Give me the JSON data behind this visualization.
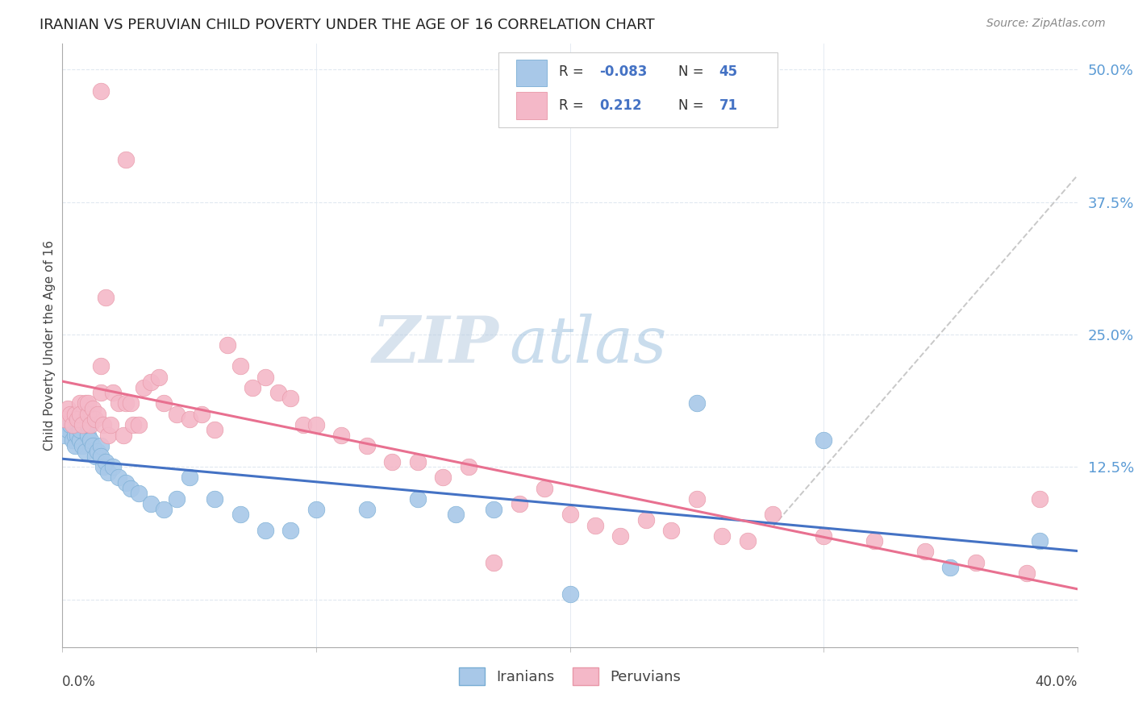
{
  "title": "IRANIAN VS PERUVIAN CHILD POVERTY UNDER THE AGE OF 16 CORRELATION CHART",
  "source": "Source: ZipAtlas.com",
  "ylabel": "Child Poverty Under the Age of 16",
  "xmin": 0.0,
  "xmax": 0.4,
  "ymin": -0.045,
  "ymax": 0.525,
  "blue_color": "#a8c8e8",
  "blue_edge": "#7aaed4",
  "pink_color": "#f4b8c8",
  "pink_edge": "#e898a8",
  "blue_line_color": "#4472c4",
  "pink_line_color": "#e87090",
  "dashed_line_color": "#c8c8c8",
  "watermark_zip_color": "#c0d0e0",
  "watermark_atlas_color": "#b0c8e0",
  "background_color": "#ffffff",
  "grid_color": "#e0e8f0",
  "ytick_color": "#5b9bd5",
  "iranians_x": [
    0.001,
    0.002,
    0.003,
    0.004,
    0.005,
    0.005,
    0.006,
    0.007,
    0.007,
    0.008,
    0.009,
    0.01,
    0.01,
    0.011,
    0.012,
    0.013,
    0.014,
    0.015,
    0.015,
    0.016,
    0.017,
    0.018,
    0.02,
    0.022,
    0.025,
    0.027,
    0.03,
    0.035,
    0.04,
    0.045,
    0.05,
    0.06,
    0.07,
    0.08,
    0.09,
    0.1,
    0.12,
    0.14,
    0.155,
    0.17,
    0.2,
    0.25,
    0.3,
    0.35,
    0.385
  ],
  "iranians_y": [
    0.155,
    0.16,
    0.165,
    0.15,
    0.155,
    0.145,
    0.155,
    0.15,
    0.16,
    0.145,
    0.14,
    0.155,
    0.165,
    0.15,
    0.145,
    0.135,
    0.14,
    0.145,
    0.135,
    0.125,
    0.13,
    0.12,
    0.125,
    0.115,
    0.11,
    0.105,
    0.1,
    0.09,
    0.085,
    0.095,
    0.115,
    0.095,
    0.08,
    0.065,
    0.065,
    0.085,
    0.085,
    0.095,
    0.08,
    0.085,
    0.005,
    0.185,
    0.15,
    0.03,
    0.055
  ],
  "peruvians_x": [
    0.001,
    0.002,
    0.003,
    0.004,
    0.005,
    0.006,
    0.007,
    0.007,
    0.008,
    0.009,
    0.01,
    0.01,
    0.011,
    0.012,
    0.013,
    0.014,
    0.015,
    0.015,
    0.016,
    0.017,
    0.018,
    0.019,
    0.02,
    0.022,
    0.024,
    0.025,
    0.027,
    0.028,
    0.03,
    0.032,
    0.035,
    0.038,
    0.04,
    0.045,
    0.05,
    0.055,
    0.06,
    0.065,
    0.07,
    0.075,
    0.08,
    0.085,
    0.09,
    0.095,
    0.1,
    0.11,
    0.12,
    0.13,
    0.14,
    0.15,
    0.16,
    0.17,
    0.18,
    0.19,
    0.2,
    0.21,
    0.22,
    0.23,
    0.24,
    0.25,
    0.26,
    0.27,
    0.28,
    0.3,
    0.32,
    0.34,
    0.36,
    0.38,
    0.385,
    0.015,
    0.025
  ],
  "peruvians_y": [
    0.17,
    0.18,
    0.175,
    0.165,
    0.175,
    0.17,
    0.185,
    0.175,
    0.165,
    0.185,
    0.175,
    0.185,
    0.165,
    0.18,
    0.17,
    0.175,
    0.22,
    0.195,
    0.165,
    0.285,
    0.155,
    0.165,
    0.195,
    0.185,
    0.155,
    0.185,
    0.185,
    0.165,
    0.165,
    0.2,
    0.205,
    0.21,
    0.185,
    0.175,
    0.17,
    0.175,
    0.16,
    0.24,
    0.22,
    0.2,
    0.21,
    0.195,
    0.19,
    0.165,
    0.165,
    0.155,
    0.145,
    0.13,
    0.13,
    0.115,
    0.125,
    0.035,
    0.09,
    0.105,
    0.08,
    0.07,
    0.06,
    0.075,
    0.065,
    0.095,
    0.06,
    0.055,
    0.08,
    0.06,
    0.055,
    0.045,
    0.035,
    0.025,
    0.095,
    0.48,
    0.415
  ]
}
